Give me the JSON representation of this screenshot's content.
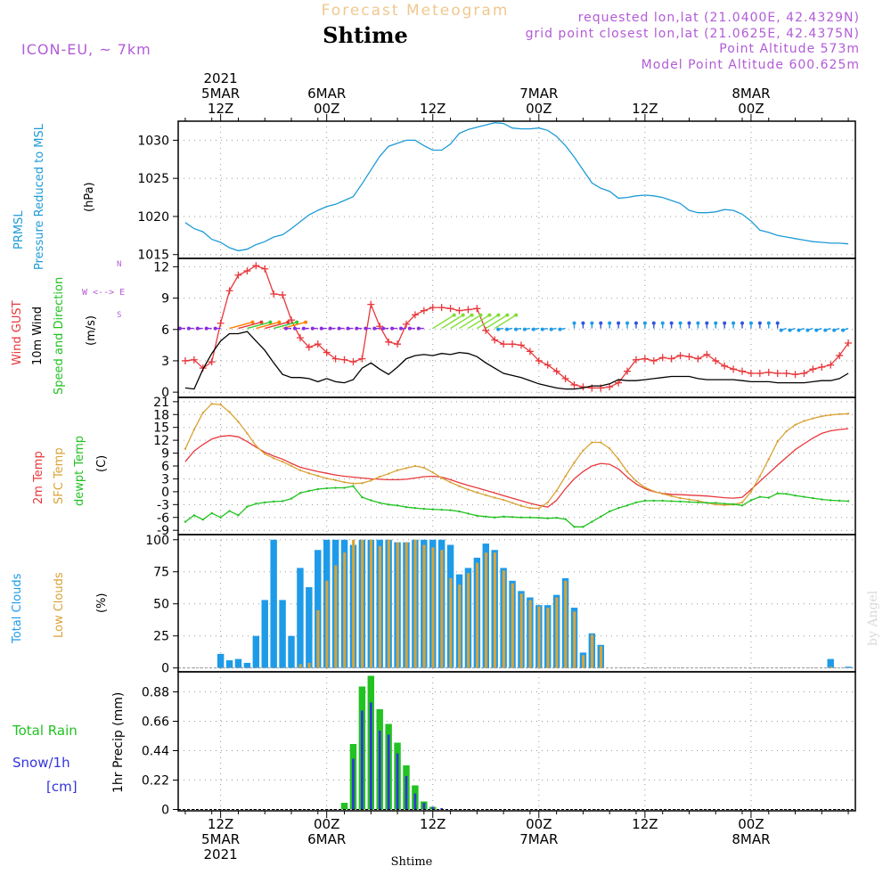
{
  "header": {
    "title": "Forecast Meteogram",
    "location": "Shtime",
    "model": "ICON-EU, ~ 7km",
    "requested": "requested lon,lat (21.0400E, 42.4329N)",
    "gridpoint": "grid point closest lon,lat (21.0625E, 42.4375N)",
    "point_altitude": "Point Altitude 573m",
    "model_altitude": "Model Point Altitude 600.625m",
    "watermark": "by Angel",
    "footer_location": "Shtime"
  },
  "colors": {
    "pressure": "#1e9bd7",
    "gust": "#e8383c",
    "wind": "#000000",
    "arrows": "#33cc33",
    "t2m": "#e8383c",
    "sfc": "#d9a338",
    "dewpt": "#22c222",
    "total_clouds": "#1e9be8",
    "low_clouds": "#d9a338",
    "rain": "#22c222",
    "snow": "#3333dd",
    "meta": "#b25bd6",
    "title": "#f0c890"
  },
  "time_axis": {
    "top": [
      {
        "t": 0,
        "lines": [
          "2021",
          "5MAR",
          "12Z"
        ]
      },
      {
        "t": 12,
        "lines": [
          "6MAR",
          "00Z"
        ]
      },
      {
        "t": 24,
        "lines": [
          "12Z"
        ]
      },
      {
        "t": 36,
        "lines": [
          "7MAR",
          "00Z"
        ]
      },
      {
        "t": 48,
        "lines": [
          "12Z"
        ]
      },
      {
        "t": 60,
        "lines": [
          "8MAR",
          "00Z"
        ]
      }
    ],
    "bottom": [
      {
        "t": 0,
        "lines": [
          "12Z",
          "5MAR",
          "2021"
        ]
      },
      {
        "t": 12,
        "lines": [
          "00Z",
          "6MAR"
        ]
      },
      {
        "t": 24,
        "lines": [
          "12Z"
        ]
      },
      {
        "t": 36,
        "lines": [
          "00Z",
          "7MAR"
        ]
      },
      {
        "t": 48,
        "lines": [
          "12Z"
        ]
      },
      {
        "t": 60,
        "lines": [
          "00Z",
          "8MAR"
        ]
      }
    ],
    "range_hours": [
      -4.8,
      71.8
    ]
  },
  "chart_data": [
    {
      "type": "line",
      "panel": "pressure",
      "labels": [
        "PRMSL",
        "Pressure Reduced to MSL",
        "(hPa)"
      ],
      "ylim": [
        1014.5,
        1032.5
      ],
      "yticks": [
        1015,
        1020,
        1025,
        1030
      ],
      "x": [
        -5,
        -4,
        -3,
        -2,
        -1,
        0,
        1,
        2,
        3,
        4,
        5,
        6,
        7,
        8,
        9,
        10,
        11,
        12,
        13,
        14,
        15,
        16,
        17,
        18,
        19,
        20,
        21,
        22,
        23,
        24,
        25,
        26,
        27,
        28,
        29,
        30,
        31,
        32,
        33,
        34,
        35,
        36,
        37,
        38,
        39,
        40,
        41,
        42,
        43,
        44,
        45,
        46,
        47,
        48,
        49,
        50,
        51,
        52,
        53,
        54,
        55,
        56,
        57,
        58,
        59,
        60,
        61,
        62,
        63,
        64,
        65,
        66,
        67,
        68,
        69,
        70,
        71,
        72
      ],
      "series": [
        {
          "name": "PRMSL",
          "values": [
            1019.4,
            1019.2,
            1018.4,
            1018,
            1017,
            1016.6,
            1015.9,
            1015.5,
            1015.7,
            1016.3,
            1016.7,
            1017.3,
            1017.6,
            1018.4,
            1019.3,
            1020.2,
            1020.8,
            1021.3,
            1021.6,
            1022.1,
            1022.6,
            1024.3,
            1026.1,
            1027.9,
            1029.2,
            1029.6,
            1030,
            1030,
            1029.3,
            1028.7,
            1028.7,
            1029.5,
            1030.9,
            1031.4,
            1031.7,
            1032,
            1032.3,
            1032.2,
            1031.6,
            1031.5,
            1031.5,
            1031.6,
            1031.3,
            1030.5,
            1029.3,
            1027.8,
            1026.1,
            1024.4,
            1023.7,
            1023.3,
            1022.4,
            1022.5,
            1022.7,
            1022.8,
            1022.7,
            1022.5,
            1022.1,
            1021.7,
            1020.8,
            1020.5,
            1020.5,
            1020.6,
            1020.9,
            1020.8,
            1020.3,
            1019.4,
            1018.2,
            1017.9,
            1017.5,
            1017.3,
            1017.1,
            1016.9,
            1016.7,
            1016.6,
            1016.5,
            1016.5,
            1016.4,
            1016.3
          ]
        }
      ]
    },
    {
      "type": "line",
      "panel": "wind",
      "labels": [
        "Wind GUST",
        "10m Wind",
        "Speed and Direction",
        "(m/s)"
      ],
      "compass": "W <--> E",
      "ylim": [
        -0.5,
        12.8
      ],
      "yticks": [
        0,
        3,
        6,
        9,
        12
      ],
      "x": [
        -5,
        -4,
        -3,
        -2,
        -1,
        0,
        1,
        2,
        3,
        4,
        5,
        6,
        7,
        8,
        9,
        10,
        11,
        12,
        13,
        14,
        15,
        16,
        17,
        18,
        19,
        20,
        21,
        22,
        23,
        24,
        25,
        26,
        27,
        28,
        29,
        30,
        31,
        32,
        33,
        34,
        35,
        36,
        37,
        38,
        39,
        40,
        41,
        42,
        43,
        44,
        45,
        46,
        47,
        48,
        49,
        50,
        51,
        52,
        53,
        54,
        55,
        56,
        57,
        58,
        59,
        60,
        61,
        62,
        63,
        64,
        65,
        66,
        67,
        68,
        69,
        70,
        71,
        72
      ],
      "series": [
        {
          "name": "Wind GUST",
          "values": [
            2.8,
            3,
            3.1,
            2.3,
            2.9,
            6.6,
            9.7,
            11.2,
            11.6,
            12.1,
            11.8,
            9.4,
            9.3,
            6.9,
            5.2,
            4.3,
            4.6,
            3.8,
            3.2,
            3.1,
            2.9,
            3.2,
            8.4,
            6.3,
            4.8,
            4.6,
            6.5,
            7.4,
            7.8,
            8.1,
            8.1,
            8,
            7.8,
            7.9,
            8,
            5.9,
            5,
            4.6,
            4.6,
            4.5,
            3.9,
            3,
            2.6,
            2,
            1.3,
            0.7,
            0.5,
            0.4,
            0.4,
            0.5,
            0.9,
            2,
            3.1,
            3.2,
            3,
            3.3,
            3.2,
            3.5,
            3.4,
            3.2,
            3.6,
            3,
            2.5,
            2.2,
            2,
            1.8,
            1.8,
            1.9,
            1.8,
            1.8,
            1.7,
            1.8,
            2.2,
            2.4,
            2.6,
            3.5,
            4.7,
            4.7
          ]
        },
        {
          "name": "10m Wind",
          "values": [
            0.6,
            0.4,
            0.3,
            2.2,
            3.7,
            4.9,
            5.6,
            5.6,
            5.8,
            4.9,
            4,
            2.8,
            1.7,
            1.4,
            1.4,
            1.3,
            1,
            1.3,
            1,
            0.9,
            1.2,
            2.3,
            2.8,
            2.2,
            1.7,
            2.4,
            3.2,
            3.5,
            3.6,
            3.5,
            3.7,
            3.6,
            3.8,
            3.7,
            3.4,
            2.8,
            2.3,
            1.8,
            1.6,
            1.4,
            1.1,
            0.8,
            0.6,
            0.4,
            0.3,
            0.3,
            0.4,
            0.6,
            0.6,
            0.8,
            1.2,
            1.1,
            1.1,
            1.2,
            1.3,
            1.4,
            1.5,
            1.5,
            1.5,
            1.3,
            1.2,
            1.2,
            1.2,
            1.2,
            1.1,
            1,
            1,
            1,
            0.9,
            0.9,
            0.9,
            0.9,
            1,
            1.1,
            1.1,
            1.3,
            1.8,
            1.6
          ]
        }
      ],
      "direction_strip": {
        "y": 6.1,
        "note": "arrow strip: westerly purple, strong NE-flow green, N-flow blue"
      }
    },
    {
      "type": "line",
      "panel": "temperature",
      "labels": [
        "2m Temp",
        "SFC Temp",
        "dewpt Temp",
        "(C)"
      ],
      "ylim": [
        -10,
        22
      ],
      "yticks": [
        -9,
        -6,
        -3,
        0,
        3,
        6,
        9,
        12,
        15,
        18,
        21
      ],
      "x": [
        -5,
        -4,
        -3,
        -2,
        -1,
        0,
        1,
        2,
        3,
        4,
        5,
        6,
        7,
        8,
        9,
        10,
        11,
        12,
        13,
        14,
        15,
        16,
        17,
        18,
        19,
        20,
        21,
        22,
        23,
        24,
        25,
        26,
        27,
        28,
        29,
        30,
        31,
        32,
        33,
        34,
        35,
        36,
        37,
        38,
        39,
        40,
        41,
        42,
        43,
        44,
        45,
        46,
        47,
        48,
        49,
        50,
        51,
        52,
        53,
        54,
        55,
        56,
        57,
        58,
        59,
        60,
        61,
        62,
        63,
        64,
        65,
        66,
        67,
        68,
        69,
        70,
        71,
        72
      ],
      "series": [
        {
          "name": "2m Temp",
          "values": [
            4,
            7,
            9.5,
            11,
            12.3,
            12.9,
            13.1,
            12.8,
            11.7,
            10.4,
            9.2,
            8.3,
            7.6,
            6.6,
            5.7,
            5.2,
            4.7,
            4.3,
            3.9,
            3.6,
            3.4,
            3.2,
            3,
            2.9,
            2.8,
            2.8,
            2.9,
            3.2,
            3.5,
            3.6,
            3.4,
            2.8,
            2.1,
            1.5,
            0.9,
            0.3,
            -0.3,
            -0.9,
            -1.5,
            -2.1,
            -2.7,
            -3.2,
            -3.6,
            -2,
            0.7,
            3,
            4.7,
            6,
            6.6,
            6.4,
            5.3,
            3.4,
            1.8,
            0.7,
            0,
            -0.4,
            -0.6,
            -0.7,
            -0.8,
            -0.9,
            -1,
            -1.2,
            -1.4,
            -1.5,
            -1.3,
            0.5,
            2.4,
            4.3,
            6.2,
            8,
            9.8,
            11.2,
            12.5,
            13.6,
            14.2,
            14.5,
            14.7,
            14.8
          ]
        },
        {
          "name": "SFC Temp",
          "values": [
            5,
            10,
            14.5,
            18.4,
            20.5,
            20.3,
            18.6,
            16.3,
            13.6,
            10.7,
            8.8,
            7.8,
            7,
            6,
            5,
            4.3,
            3.7,
            3.1,
            2.7,
            2.2,
            1.9,
            2,
            2.6,
            3.5,
            4.2,
            5,
            5.5,
            6,
            5.6,
            4.5,
            3.2,
            2.2,
            1.3,
            0.5,
            -0.2,
            -0.8,
            -1.4,
            -1.9,
            -2.6,
            -3.3,
            -3.8,
            -3.9,
            -2.5,
            0.2,
            3.6,
            6.8,
            9.6,
            11.5,
            11.5,
            10.1,
            7.6,
            4.7,
            2.5,
            1,
            0.1,
            -0.5,
            -1,
            -1.5,
            -1.8,
            -2.1,
            -2.6,
            -3,
            -3.1,
            -3,
            -2.5,
            0,
            3.6,
            7.6,
            11.7,
            14.1,
            15.6,
            16.5,
            17.1,
            17.6,
            17.9,
            18.1,
            18.2,
            18.3
          ]
        },
        {
          "name": "dewpt Temp",
          "values": [
            -4.5,
            -7,
            -5.5,
            -6.5,
            -5,
            -6,
            -4.5,
            -5.5,
            -3.5,
            -2.8,
            -2.5,
            -2.3,
            -2.2,
            -1.6,
            -0.3,
            0.2,
            0.6,
            0.8,
            0.9,
            0.9,
            1.3,
            -1.3,
            -2,
            -2.6,
            -3,
            -3.2,
            -3.6,
            -3.8,
            -4,
            -4.1,
            -4.2,
            -4.3,
            -4.6,
            -5.1,
            -5.6,
            -5.8,
            -6,
            -5.8,
            -5.9,
            -6,
            -6,
            -6.1,
            -6.2,
            -6.1,
            -6.4,
            -8.2,
            -8.2,
            -7,
            -5.8,
            -4.6,
            -3.8,
            -3.2,
            -2.5,
            -2.1,
            -2.1,
            -2.1,
            -2.2,
            -2.3,
            -2.4,
            -2.5,
            -2.6,
            -2.6,
            -2.8,
            -2.9,
            -3.2,
            -2,
            -1.2,
            -1.4,
            -0.4,
            -0.5,
            -0.9,
            -1.2,
            -1.5,
            -1.8,
            -2,
            -2.1,
            -2.2,
            -2.3
          ]
        }
      ]
    },
    {
      "type": "bar",
      "panel": "clouds",
      "labels": [
        "Total Clouds",
        "Low Clouds",
        "(%)"
      ],
      "ylim": [
        -3,
        104
      ],
      "yticks": [
        0,
        25,
        50,
        75,
        100
      ],
      "x": [
        -5,
        -4,
        -3,
        -2,
        -1,
        0,
        1,
        2,
        3,
        4,
        5,
        6,
        7,
        8,
        9,
        10,
        11,
        12,
        13,
        14,
        15,
        16,
        17,
        18,
        19,
        20,
        21,
        22,
        23,
        24,
        25,
        26,
        27,
        28,
        29,
        30,
        31,
        32,
        33,
        34,
        35,
        36,
        37,
        38,
        39,
        40,
        41,
        42,
        43,
        44,
        45,
        46,
        47,
        48,
        49,
        50,
        51,
        52,
        53,
        54,
        55,
        56,
        57,
        58,
        59,
        60,
        61,
        62,
        63,
        64,
        65,
        66,
        67,
        68,
        69,
        70,
        71,
        72
      ],
      "series": [
        {
          "name": "Total Clouds",
          "values": [
            0,
            0,
            0,
            0,
            0,
            11,
            6,
            7,
            4,
            25,
            53,
            100,
            53,
            25,
            78,
            63,
            92,
            100,
            100,
            100,
            96,
            100,
            100,
            100,
            100,
            98,
            98,
            100,
            100,
            100,
            100,
            96,
            73,
            78,
            86,
            97,
            92,
            78,
            68,
            60,
            55,
            49,
            49,
            57,
            70,
            47,
            12,
            27,
            18,
            0,
            0,
            0,
            0,
            0,
            0,
            0,
            0,
            0,
            0,
            0,
            0,
            0,
            0,
            0,
            0,
            0,
            0,
            0,
            0,
            0,
            0,
            0,
            0,
            0,
            7,
            0,
            1,
            0
          ]
        },
        {
          "name": "Low Clouds",
          "values": [
            0,
            0,
            0,
            0,
            0,
            0,
            0,
            0,
            0,
            0,
            0,
            0,
            0,
            0,
            3,
            4,
            45,
            68,
            80,
            90,
            100,
            100,
            100,
            95,
            100,
            98,
            98,
            100,
            96,
            94,
            92,
            70,
            65,
            74,
            82,
            90,
            90,
            76,
            66,
            58,
            53,
            48,
            47,
            55,
            68,
            44,
            10,
            26,
            17,
            0,
            0,
            0,
            0,
            0,
            0,
            0,
            0,
            0,
            0,
            0,
            0,
            0,
            0,
            0,
            0,
            0,
            0,
            0,
            0,
            0,
            0,
            0,
            0,
            0,
            1,
            0,
            0,
            0
          ]
        }
      ]
    },
    {
      "type": "bar",
      "panel": "precip",
      "labels": [
        "Total Rain",
        "Snow/1h",
        "[cm]",
        "1hr Precip (mm)"
      ],
      "ylim": [
        -0.01,
        1.03
      ],
      "yticks": [
        0,
        0.22,
        0.44,
        0.66,
        0.88
      ],
      "ytick_labels": [
        "0",
        "0.22",
        "0.44",
        "0.66",
        "0.88"
      ],
      "x": [
        14,
        15,
        16,
        17,
        18,
        19,
        20,
        21,
        22,
        23,
        24,
        25
      ],
      "series": [
        {
          "name": "Total Rain",
          "values": [
            0.05,
            0.49,
            0.92,
            1.0,
            0.75,
            0.64,
            0.5,
            0.33,
            0.18,
            0.06,
            0.02,
            0
          ]
        },
        {
          "name": "Snow/1h",
          "values": [
            0,
            0.38,
            0.74,
            0.8,
            0.59,
            0.56,
            0.42,
            0.25,
            0.12,
            0.05,
            0.02,
            0.01
          ]
        }
      ]
    }
  ]
}
